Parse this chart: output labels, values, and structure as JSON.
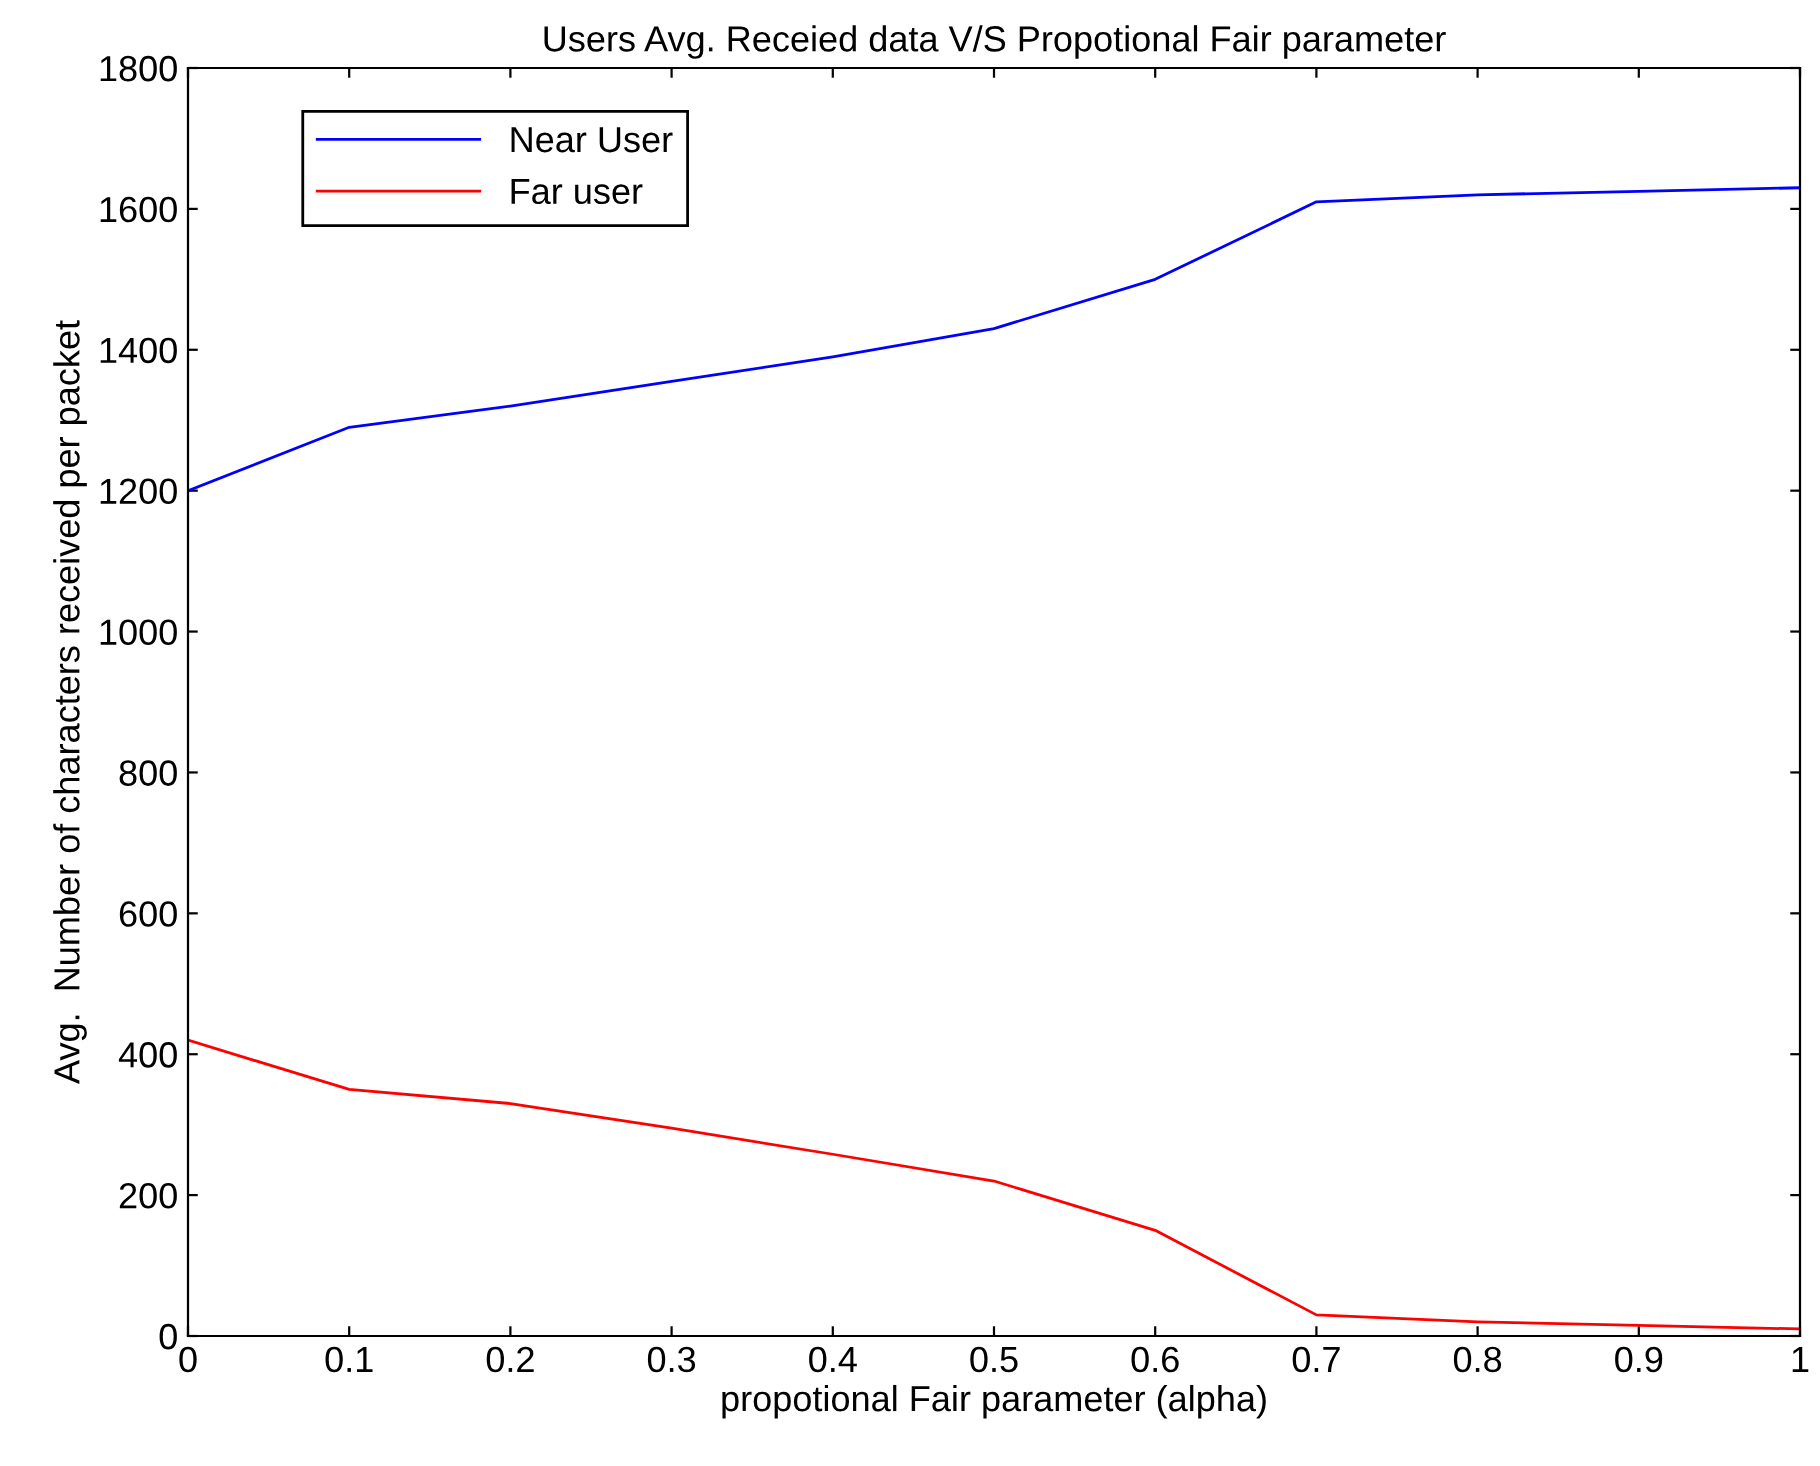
{
  "chart_data": {
    "type": "line",
    "title": "Users Avg. Receied data V/S Propotional Fair parameter",
    "xlabel": "propotional Fair parameter (alpha)",
    "ylabel": "Avg.  Number of characters received per packet",
    "x": [
      0,
      0.1,
      0.2,
      0.3,
      0.4,
      0.5,
      0.6,
      0.7,
      0.8,
      0.9,
      1
    ],
    "series": [
      {
        "name": "Near User",
        "color": "#0000ff",
        "values": [
          1200,
          1290,
          1320,
          1355,
          1390,
          1430,
          1500,
          1610,
          1620,
          1625,
          1630
        ]
      },
      {
        "name": "Far user",
        "color": "#ff0000",
        "values": [
          420,
          350,
          330,
          295,
          258,
          220,
          150,
          30,
          20,
          15,
          10
        ]
      }
    ],
    "xlim": [
      0,
      1
    ],
    "xticks": [
      0,
      0.1,
      0.2,
      0.3,
      0.4,
      0.5,
      0.6,
      0.7,
      0.8,
      0.9,
      1
    ],
    "ylim": [
      0,
      1800
    ],
    "yticks": [
      0,
      200,
      400,
      600,
      800,
      1000,
      1200,
      1400,
      1600,
      1800
    ],
    "grid": false,
    "legend": "top left",
    "marker": "none",
    "line_style": "solid"
  }
}
